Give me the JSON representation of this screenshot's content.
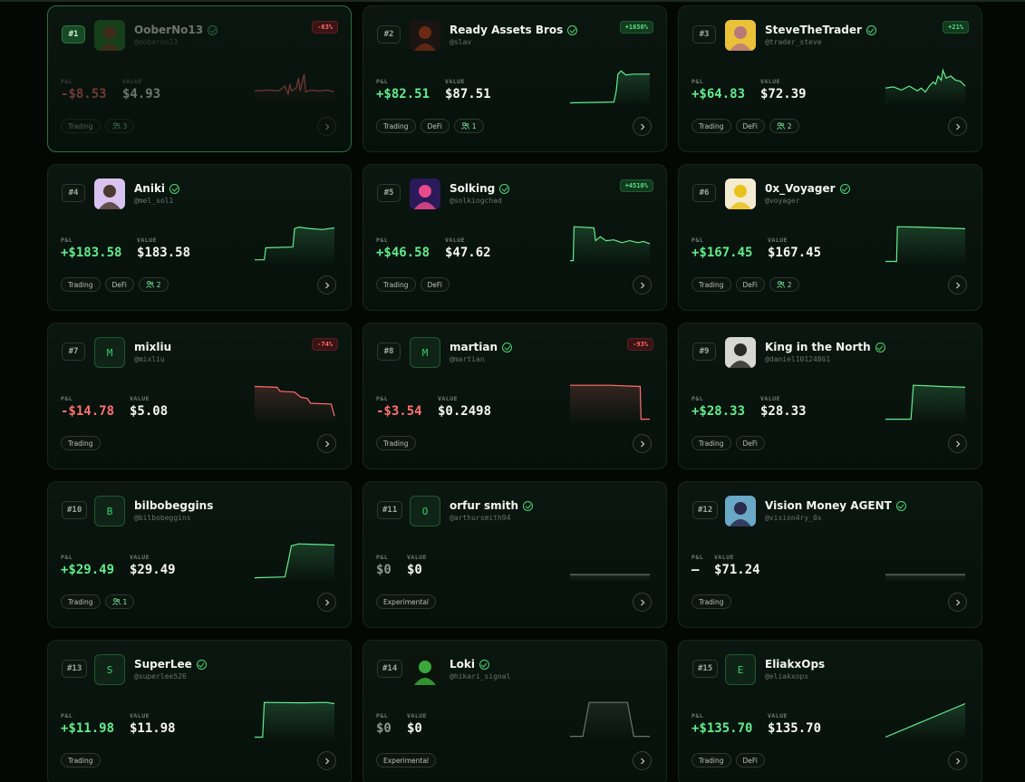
{
  "labels": {
    "pnl": "P&L",
    "value": "VALUE"
  },
  "colors": {
    "positive": "#62ec8d",
    "negative": "#ff6f6f",
    "neutral": "#8c9790",
    "flat_line": "#6b746f"
  },
  "traders": [
    {
      "rank": "#1",
      "name": "OoberNo13",
      "handle": "@ooberno13",
      "verified": true,
      "badge": "-63%",
      "badge_dir": "down",
      "pnl": "-$8.53",
      "pnl_dir": "neg",
      "value": "$4.93",
      "tags": [
        "Trading"
      ],
      "copiers": "3",
      "avatar": {
        "type": "img",
        "icon": "pixel-avatar-icon",
        "bg": "#2a7a2a",
        "fg": "#8a4b2a"
      },
      "selected": true,
      "spark": {
        "dir": "neg",
        "points": [
          [
            0,
            0.62
          ],
          [
            0.18,
            0.6
          ],
          [
            0.3,
            0.62
          ],
          [
            0.38,
            0.5
          ],
          [
            0.42,
            0.7
          ],
          [
            0.44,
            0.45
          ],
          [
            0.46,
            0.62
          ],
          [
            0.52,
            0.55
          ],
          [
            0.55,
            0.3
          ],
          [
            0.57,
            0.62
          ],
          [
            0.62,
            0.2
          ],
          [
            0.64,
            0.65
          ],
          [
            0.7,
            0.6
          ],
          [
            0.8,
            0.62
          ],
          [
            0.9,
            0.6
          ],
          [
            1,
            0.64
          ]
        ]
      }
    },
    {
      "rank": "#2",
      "name": "Ready Assets Bros",
      "handle": "@slav",
      "verified": true,
      "badge": "+1650%",
      "badge_dir": "up",
      "pnl": "+$82.51",
      "pnl_dir": "pos",
      "value": "$87.51",
      "tags": [
        "Trading",
        "DeFi"
      ],
      "copiers": "1",
      "avatar": {
        "type": "img",
        "icon": "dark-figure-avatar-icon",
        "bg": "#1a1412",
        "fg": "#6b2a12"
      },
      "spark": {
        "dir": "pos",
        "points": [
          [
            0,
            0.92
          ],
          [
            0.55,
            0.9
          ],
          [
            0.58,
            0.62
          ],
          [
            0.6,
            0.2
          ],
          [
            0.64,
            0.12
          ],
          [
            0.7,
            0.22
          ],
          [
            0.8,
            0.2
          ],
          [
            1,
            0.2
          ]
        ]
      }
    },
    {
      "rank": "#3",
      "name": "SteveTheTrader",
      "handle": "@trader_steve",
      "verified": true,
      "badge": "+21%",
      "badge_dir": "up",
      "pnl": "+$64.83",
      "pnl_dir": "pos",
      "value": "$72.39",
      "tags": [
        "Trading",
        "DeFi"
      ],
      "copiers": "2",
      "avatar": {
        "type": "img",
        "icon": "cartoon-face-avatar-icon",
        "bg": "#e9c23a",
        "fg": "#b7787a"
      },
      "spark": {
        "dir": "pos",
        "points": [
          [
            0,
            0.55
          ],
          [
            0.1,
            0.52
          ],
          [
            0.2,
            0.6
          ],
          [
            0.3,
            0.5
          ],
          [
            0.4,
            0.62
          ],
          [
            0.45,
            0.55
          ],
          [
            0.5,
            0.65
          ],
          [
            0.55,
            0.5
          ],
          [
            0.6,
            0.4
          ],
          [
            0.63,
            0.45
          ],
          [
            0.66,
            0.25
          ],
          [
            0.7,
            0.35
          ],
          [
            0.72,
            0.1
          ],
          [
            0.76,
            0.3
          ],
          [
            0.82,
            0.25
          ],
          [
            0.88,
            0.35
          ],
          [
            0.94,
            0.38
          ],
          [
            1,
            0.5
          ]
        ]
      }
    },
    {
      "rank": "#4",
      "name": "Aniki",
      "handle": "@mel_sol1",
      "verified": true,
      "badge": "",
      "badge_dir": "",
      "pnl": "+$183.58",
      "pnl_dir": "pos",
      "value": "$183.58",
      "tags": [
        "Trading",
        "DeFi"
      ],
      "copiers": "2",
      "avatar": {
        "type": "img",
        "icon": "anime-portrait-avatar-icon",
        "bg": "#d8c3f0",
        "fg": "#4a3a2e"
      },
      "spark": {
        "dir": "pos",
        "points": [
          [
            0,
            0.88
          ],
          [
            0.12,
            0.88
          ],
          [
            0.14,
            0.58
          ],
          [
            0.48,
            0.56
          ],
          [
            0.5,
            0.1
          ],
          [
            0.55,
            0.06
          ],
          [
            0.7,
            0.1
          ],
          [
            0.85,
            0.12
          ],
          [
            1,
            0.08
          ]
        ]
      }
    },
    {
      "rank": "#5",
      "name": "Solking",
      "handle": "@solkingchad",
      "verified": true,
      "badge": "+4510%",
      "badge_dir": "up",
      "pnl": "+$46.58",
      "pnl_dir": "pos",
      "value": "$47.62",
      "tags": [
        "Trading",
        "DeFi"
      ],
      "copiers": "",
      "avatar": {
        "type": "img",
        "icon": "neon-king-avatar-icon",
        "bg": "#2a1a5a",
        "fg": "#e84a8a"
      },
      "spark": {
        "dir": "pos",
        "points": [
          [
            0,
            0.9
          ],
          [
            0.04,
            0.9
          ],
          [
            0.05,
            0.05
          ],
          [
            0.3,
            0.08
          ],
          [
            0.32,
            0.4
          ],
          [
            0.38,
            0.3
          ],
          [
            0.45,
            0.4
          ],
          [
            0.55,
            0.38
          ],
          [
            0.65,
            0.45
          ],
          [
            0.75,
            0.4
          ],
          [
            0.85,
            0.45
          ],
          [
            0.92,
            0.42
          ],
          [
            1,
            0.48
          ]
        ]
      }
    },
    {
      "rank": "#6",
      "name": "0x_Voyager",
      "handle": "@voyager",
      "verified": true,
      "badge": "",
      "badge_dir": "",
      "pnl": "+$167.45",
      "pnl_dir": "pos",
      "value": "$167.45",
      "tags": [
        "Trading",
        "DeFi"
      ],
      "copiers": "2",
      "avatar": {
        "type": "img",
        "icon": "explorer-avatar-icon",
        "bg": "#f4ecd0",
        "fg": "#e8c21a"
      },
      "spark": {
        "dir": "pos",
        "points": [
          [
            0,
            0.92
          ],
          [
            0.14,
            0.92
          ],
          [
            0.15,
            0.05
          ],
          [
            0.4,
            0.06
          ],
          [
            0.7,
            0.08
          ],
          [
            1,
            0.1
          ]
        ]
      }
    },
    {
      "rank": "#7",
      "name": "mixliu",
      "handle": "@mixliu",
      "verified": false,
      "badge": "-74%",
      "badge_dir": "down",
      "pnl": "-$14.78",
      "pnl_dir": "neg",
      "value": "$5.08",
      "tags": [
        "Trading"
      ],
      "copiers": "",
      "avatar": {
        "type": "letter",
        "letter": "M",
        "icon": "letter-avatar-icon"
      },
      "spark": {
        "dir": "neg",
        "points": [
          [
            0,
            0.08
          ],
          [
            0.28,
            0.1
          ],
          [
            0.32,
            0.2
          ],
          [
            0.5,
            0.22
          ],
          [
            0.58,
            0.35
          ],
          [
            0.66,
            0.38
          ],
          [
            0.7,
            0.5
          ],
          [
            0.96,
            0.52
          ],
          [
            1,
            0.82
          ]
        ]
      }
    },
    {
      "rank": "#8",
      "name": "martian",
      "handle": "@martian",
      "verified": true,
      "badge": "-93%",
      "badge_dir": "down",
      "pnl": "-$3.54",
      "pnl_dir": "neg",
      "value": "$0.2498",
      "tags": [
        "Trading"
      ],
      "copiers": "",
      "avatar": {
        "type": "letter",
        "letter": "M",
        "icon": "letter-avatar-icon"
      },
      "spark": {
        "dir": "neg",
        "points": [
          [
            0,
            0.05
          ],
          [
            0.5,
            0.05
          ],
          [
            0.88,
            0.08
          ],
          [
            0.89,
            0.9
          ],
          [
            1,
            0.9
          ]
        ]
      }
    },
    {
      "rank": "#9",
      "name": "King in the North",
      "handle": "@daniel10124861",
      "verified": true,
      "badge": "",
      "badge_dir": "",
      "pnl": "+$28.33",
      "pnl_dir": "pos",
      "value": "$28.33",
      "tags": [
        "Trading",
        "DeFi"
      ],
      "copiers": "",
      "avatar": {
        "type": "img",
        "icon": "armored-knight-avatar-icon",
        "bg": "#d8d8d2",
        "fg": "#2a2a26"
      },
      "spark": {
        "dir": "pos",
        "points": [
          [
            0,
            0.9
          ],
          [
            0.32,
            0.9
          ],
          [
            0.35,
            0.05
          ],
          [
            0.5,
            0.06
          ],
          [
            0.7,
            0.08
          ],
          [
            1,
            0.1
          ]
        ]
      }
    },
    {
      "rank": "#10",
      "name": "bilbobeggins",
      "handle": "@bilbobeggins",
      "verified": false,
      "badge": "",
      "badge_dir": "",
      "pnl": "+$29.49",
      "pnl_dir": "pos",
      "value": "$29.49",
      "tags": [
        "Trading"
      ],
      "copiers": "1",
      "avatar": {
        "type": "letter",
        "letter": "B",
        "icon": "letter-avatar-icon"
      },
      "spark": {
        "dir": "pos",
        "points": [
          [
            0,
            0.9
          ],
          [
            0.38,
            0.88
          ],
          [
            0.42,
            0.5
          ],
          [
            0.46,
            0.1
          ],
          [
            0.55,
            0.05
          ],
          [
            0.7,
            0.06
          ],
          [
            1,
            0.08
          ]
        ]
      }
    },
    {
      "rank": "#11",
      "name": "orfur smith",
      "handle": "@arthursmith94",
      "verified": true,
      "badge": "",
      "badge_dir": "",
      "pnl": "$0",
      "pnl_dir": "zero",
      "value": "$0",
      "tags": [
        "Experimental"
      ],
      "copiers": "",
      "avatar": {
        "type": "letter",
        "letter": "O",
        "icon": "letter-avatar-icon"
      },
      "spark": {
        "dir": "flat",
        "points": [
          [
            0,
            0.82
          ],
          [
            1,
            0.82
          ]
        ]
      }
    },
    {
      "rank": "#12",
      "name": "Vision Money AGENT",
      "handle": "@vision4ry_0x",
      "verified": true,
      "badge": "",
      "badge_dir": "",
      "pnl": "—",
      "pnl_dir": "white",
      "value": "$71.24",
      "tags": [
        "Trading"
      ],
      "copiers": "",
      "avatar": {
        "type": "img",
        "icon": "hooded-agent-avatar-icon",
        "bg": "#6aa8c8",
        "fg": "#2a2a4a"
      },
      "spark": {
        "dir": "flat",
        "points": [
          [
            0,
            0.82
          ],
          [
            1,
            0.82
          ]
        ]
      }
    },
    {
      "rank": "#13",
      "name": "SuperLee",
      "handle": "@superlee526",
      "verified": true,
      "badge": "",
      "badge_dir": "",
      "pnl": "+$11.98",
      "pnl_dir": "pos",
      "value": "$11.98",
      "tags": [
        "Trading"
      ],
      "copiers": "",
      "avatar": {
        "type": "letter",
        "letter": "S",
        "icon": "letter-avatar-icon"
      },
      "spark": {
        "dir": "pos",
        "points": [
          [
            0,
            0.92
          ],
          [
            0.1,
            0.92
          ],
          [
            0.12,
            0.05
          ],
          [
            0.6,
            0.06
          ],
          [
            0.9,
            0.05
          ],
          [
            1,
            0.08
          ]
        ]
      }
    },
    {
      "rank": "#14",
      "name": "Loki",
      "handle": "@hikari_signal",
      "verified": true,
      "badge": "",
      "badge_dir": "",
      "pnl": "$0",
      "pnl_dir": "zero",
      "value": "$0",
      "tags": [
        "Experimental"
      ],
      "copiers": "",
      "avatar": {
        "type": "img",
        "icon": "green-horned-avatar-icon",
        "bg": "#0a140a",
        "fg": "#3aa83a"
      },
      "spark": {
        "dir": "flat",
        "points": [
          [
            0,
            0.9
          ],
          [
            0.16,
            0.9
          ],
          [
            0.24,
            0.05
          ],
          [
            0.72,
            0.05
          ],
          [
            0.8,
            0.9
          ],
          [
            1,
            0.9
          ]
        ]
      }
    },
    {
      "rank": "#15",
      "name": "EliakxOps",
      "handle": "@eliakxops",
      "verified": false,
      "badge": "",
      "badge_dir": "",
      "pnl": "+$135.70",
      "pnl_dir": "pos",
      "value": "$135.70",
      "tags": [
        "Trading",
        "DeFi"
      ],
      "copiers": "",
      "avatar": {
        "type": "letter",
        "letter": "E",
        "icon": "letter-avatar-icon"
      },
      "spark": {
        "dir": "pos",
        "points": [
          [
            0,
            0.92
          ],
          [
            1,
            0.08
          ]
        ]
      }
    }
  ]
}
